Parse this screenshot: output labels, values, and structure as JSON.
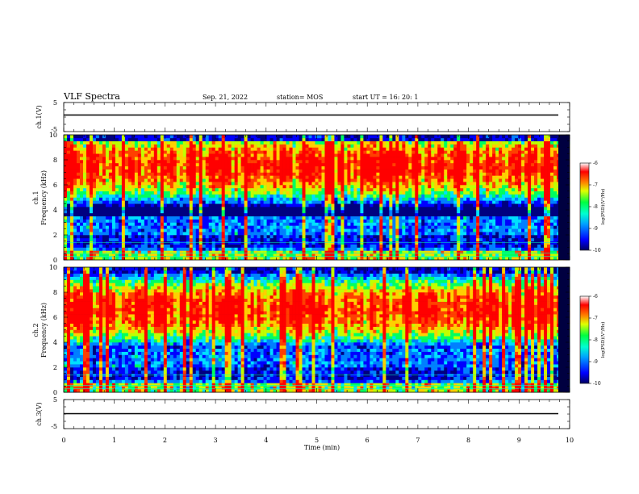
{
  "header": {
    "title": "VLF Spectra",
    "date": "Sep. 21, 2022",
    "station": "station= MOS",
    "start_ut": "start  UT =   16: 20: 1"
  },
  "chart_data": [
    {
      "panel": "ch1-voltage",
      "type": "line",
      "ylabel": "ch.1(V)",
      "ylim": [
        -5,
        5
      ],
      "yticks": [
        "5",
        "-5"
      ],
      "level": 0
    },
    {
      "panel": "ch1-spectrogram",
      "type": "heatmap",
      "ylabel_line1": "ch.1",
      "ylabel_line2": "Frequency (kHz)",
      "ylim": [
        0,
        10
      ],
      "yticks": [
        "0",
        "2",
        "4",
        "6",
        "8",
        "10"
      ],
      "xlim": [
        0,
        10
      ],
      "band_center_khz": 7.5,
      "colorbar": {
        "label": "log(PSD)(V²/Hz)",
        "range": [
          -10,
          -6
        ],
        "ticks": [
          "-6",
          "-7",
          "-8",
          "-9",
          "-10"
        ]
      }
    },
    {
      "panel": "ch2-spectrogram",
      "type": "heatmap",
      "ylabel_line1": "ch.2",
      "ylabel_line2": "Frequency (kHz)",
      "ylim": [
        0,
        10
      ],
      "yticks": [
        "0",
        "2",
        "4",
        "6",
        "8",
        "10"
      ],
      "xlim": [
        0,
        10
      ],
      "band_center_khz": 6.6,
      "colorbar": {
        "label": "log(PSD)(V²/Hz)",
        "range": [
          -10,
          -6
        ],
        "ticks": [
          "-6",
          "-7",
          "-8",
          "-9",
          "-10"
        ]
      }
    },
    {
      "panel": "ch3-voltage",
      "type": "line",
      "ylabel": "ch.3(V)",
      "ylim": [
        -5,
        5
      ],
      "yticks": [
        "5",
        "-5"
      ],
      "level": 0
    }
  ],
  "x_axis": {
    "label": "Time (min)",
    "range": [
      0,
      10
    ],
    "ticks": [
      "0",
      "1",
      "2",
      "3",
      "4",
      "5",
      "6",
      "7",
      "8",
      "9",
      "10"
    ]
  },
  "colors": {
    "colormap": [
      "#000080",
      "#0000ff",
      "#0080ff",
      "#00e0ff",
      "#00ff60",
      "#c0ff00",
      "#ffd000",
      "#ff4000",
      "#ff0000",
      "#ffffff"
    ]
  }
}
